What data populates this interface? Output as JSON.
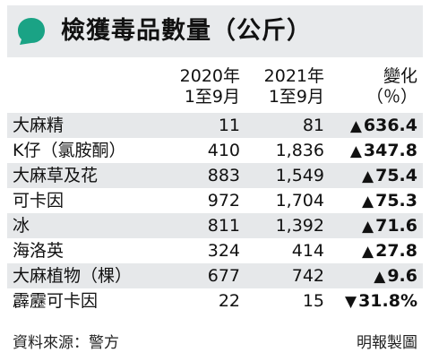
{
  "header": {
    "title": "檢獲毒品數量（公斤）",
    "accent_color": "#1aa385"
  },
  "columns": {
    "c2020_line1": "2020年",
    "c2020_line2": "1至9月",
    "c2021_line1": "2021年",
    "c2021_line2": "1至9月",
    "change_line1": "變化",
    "change_line2": "（％）"
  },
  "chart_data": {
    "type": "table",
    "title": "檢獲毒品數量（公斤）",
    "columns": [
      "2020年1至9月",
      "2021年1至9月",
      "變化（％）"
    ],
    "rows": [
      {
        "name": "大麻精",
        "v2020": "11",
        "v2021": "81",
        "dir": "up",
        "change": "636.4"
      },
      {
        "name": "K仔（氯胺酮）",
        "v2020": "410",
        "v2021": "1,836",
        "dir": "up",
        "change": "347.8"
      },
      {
        "name": "大麻草及花",
        "v2020": "883",
        "v2021": "1,549",
        "dir": "up",
        "change": "75.4"
      },
      {
        "name": "可卡因",
        "v2020": "972",
        "v2021": "1,704",
        "dir": "up",
        "change": "75.3"
      },
      {
        "name": "冰",
        "v2020": "811",
        "v2021": "1,392",
        "dir": "up",
        "change": "71.6"
      },
      {
        "name": "海洛英",
        "v2020": "324",
        "v2021": "414",
        "dir": "up",
        "change": "27.8"
      },
      {
        "name": "大麻植物（棵）",
        "v2020": "677",
        "v2021": "742",
        "dir": "up",
        "change": "9.6"
      },
      {
        "name": "霹靂可卡因",
        "v2020": "22",
        "v2021": "15",
        "dir": "down",
        "change": "31.8%"
      }
    ]
  },
  "footer": {
    "source": "資料來源：警方",
    "credit": "明報製圖"
  }
}
